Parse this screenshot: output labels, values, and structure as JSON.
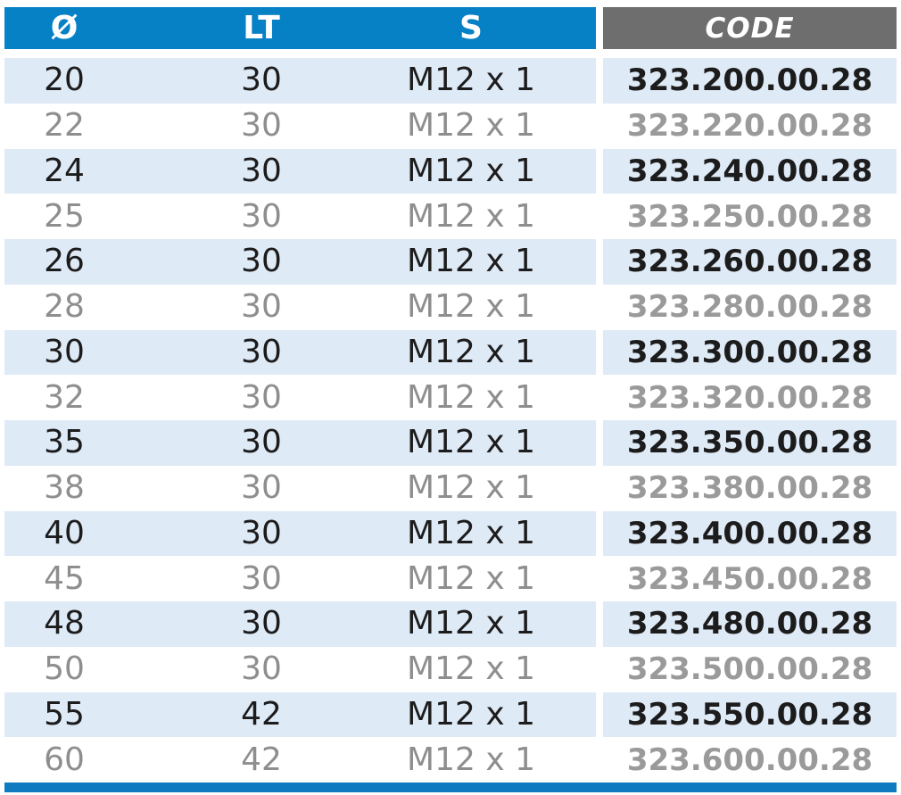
{
  "table": {
    "header": {
      "diameter": "Ø",
      "lt": "LT",
      "s": "S",
      "code": "CODE"
    },
    "rows": [
      {
        "diameter": "20",
        "lt": "30",
        "s": "M12 x 1",
        "code": "323.200.00.28"
      },
      {
        "diameter": "22",
        "lt": "30",
        "s": "M12 x 1",
        "code": "323.220.00.28"
      },
      {
        "diameter": "24",
        "lt": "30",
        "s": "M12 x 1",
        "code": "323.240.00.28"
      },
      {
        "diameter": "25",
        "lt": "30",
        "s": "M12 x 1",
        "code": "323.250.00.28"
      },
      {
        "diameter": "26",
        "lt": "30",
        "s": "M12 x 1",
        "code": "323.260.00.28"
      },
      {
        "diameter": "28",
        "lt": "30",
        "s": "M12 x 1",
        "code": "323.280.00.28"
      },
      {
        "diameter": "30",
        "lt": "30",
        "s": "M12 x 1",
        "code": "323.300.00.28"
      },
      {
        "diameter": "32",
        "lt": "30",
        "s": "M12 x 1",
        "code": "323.320.00.28"
      },
      {
        "diameter": "35",
        "lt": "30",
        "s": "M12 x 1",
        "code": "323.350.00.28"
      },
      {
        "diameter": "38",
        "lt": "30",
        "s": "M12 x 1",
        "code": "323.380.00.28"
      },
      {
        "diameter": "40",
        "lt": "30",
        "s": "M12 x 1",
        "code": "323.400.00.28"
      },
      {
        "diameter": "45",
        "lt": "30",
        "s": "M12 x 1",
        "code": "323.450.00.28"
      },
      {
        "diameter": "48",
        "lt": "30",
        "s": "M12 x 1",
        "code": "323.480.00.28"
      },
      {
        "diameter": "50",
        "lt": "30",
        "s": "M12 x 1",
        "code": "323.500.00.28"
      },
      {
        "diameter": "55",
        "lt": "42",
        "s": "M12 x 1",
        "code": "323.550.00.28"
      },
      {
        "diameter": "60",
        "lt": "42",
        "s": "M12 x 1",
        "code": "323.600.00.28"
      }
    ]
  },
  "colors": {
    "header_blue": "#0781c6",
    "header_gray": "#6e6e6e",
    "row_light_blue": "#dfeaf7",
    "bottom_bar_blue": "#0f7abf",
    "text_dark": "#1c1c1c",
    "text_gray": "#8e8e8e",
    "code_gray": "#9a9a9a"
  }
}
